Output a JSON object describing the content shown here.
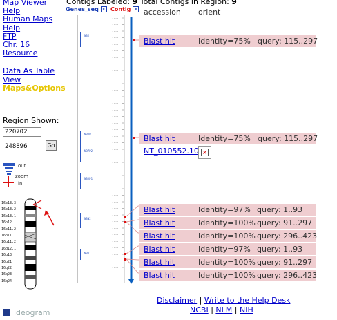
{
  "nav": {
    "links": [
      "Map Viewer",
      "Help",
      "Human Maps",
      "Help",
      "FTP",
      "Chr. 16",
      "Resource"
    ],
    "data_as_table": "Data As Table",
    "view": "View",
    "maps_options": "Maps&Options"
  },
  "region": {
    "label": "Region Shown:",
    "start": "220702",
    "end": "248896",
    "go": "Go"
  },
  "zoom": {
    "out": "out",
    "zoom": "zoom",
    "in": "in"
  },
  "header": {
    "contigs_labeled": "Contigs Labeled:",
    "labeled_count": "9",
    "total_label": "Total Contigs in Region:",
    "total_count": "9"
  },
  "columns": {
    "genes_seq": "Genes_seq",
    "contig": "Contig",
    "accession": "accession",
    "orient": "orient"
  },
  "blast_rows": [
    {
      "hit": "Blast hit",
      "identity": "Identity=75%",
      "query": "query: 115..297"
    },
    {
      "hit": "Blast hit",
      "identity": "Identity=75%",
      "query": "query: 115..297"
    },
    {
      "hit": "Blast hit",
      "identity": "Identity=97%",
      "query": "query: 1..93"
    },
    {
      "hit": "Blast hit",
      "identity": "Identity=100%",
      "query": "query: 91..297"
    },
    {
      "hit": "Blast hit",
      "identity": "Identity=100%",
      "query": "query: 296..423"
    },
    {
      "hit": "Blast hit",
      "identity": "Identity=97%",
      "query": "query: 1..93"
    },
    {
      "hit": "Blast hit",
      "identity": "Identity=100%",
      "query": "query: 91..297"
    },
    {
      "hit": "Blast hit",
      "identity": "Identity=100%",
      "query": "query: 296..423"
    }
  ],
  "contig": {
    "accession": "NT_010552.10",
    "orient_mark": "×"
  },
  "ideogram": {
    "label": "ideogram",
    "bands": [
      "16p13.3",
      "16p13.2",
      "16p13.1",
      "16p12",
      "16p11.2",
      "16p11.1",
      "16q11.2",
      "16q12.1",
      "16q13",
      "16q21",
      "16q22",
      "16q23",
      "16q24"
    ]
  },
  "footer": {
    "disclaimer": "Disclaimer",
    "sep1": "|",
    "helpdesk": "Write to the Help Desk",
    "ncbi": "NCBI",
    "sep2": "|",
    "nlm": "NLM",
    "sep3": "|",
    "nih": "NIH"
  },
  "colors": {
    "link": "#0000cc",
    "blast_row": "#efcdd0",
    "maps_options": "#e6c500",
    "axis": "#0a5fbf"
  }
}
